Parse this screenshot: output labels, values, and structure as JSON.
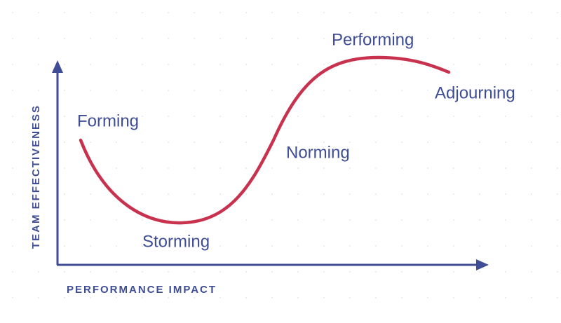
{
  "x_axis": {
    "label": "PERFORMANCE IMPACT"
  },
  "y_axis": {
    "label": "TEAM EFFECTIVENESS"
  },
  "stages": [
    {
      "label": "Forming"
    },
    {
      "label": "Storming"
    },
    {
      "label": "Norming"
    },
    {
      "label": "Performing"
    },
    {
      "label": "Adjourning"
    }
  ]
}
